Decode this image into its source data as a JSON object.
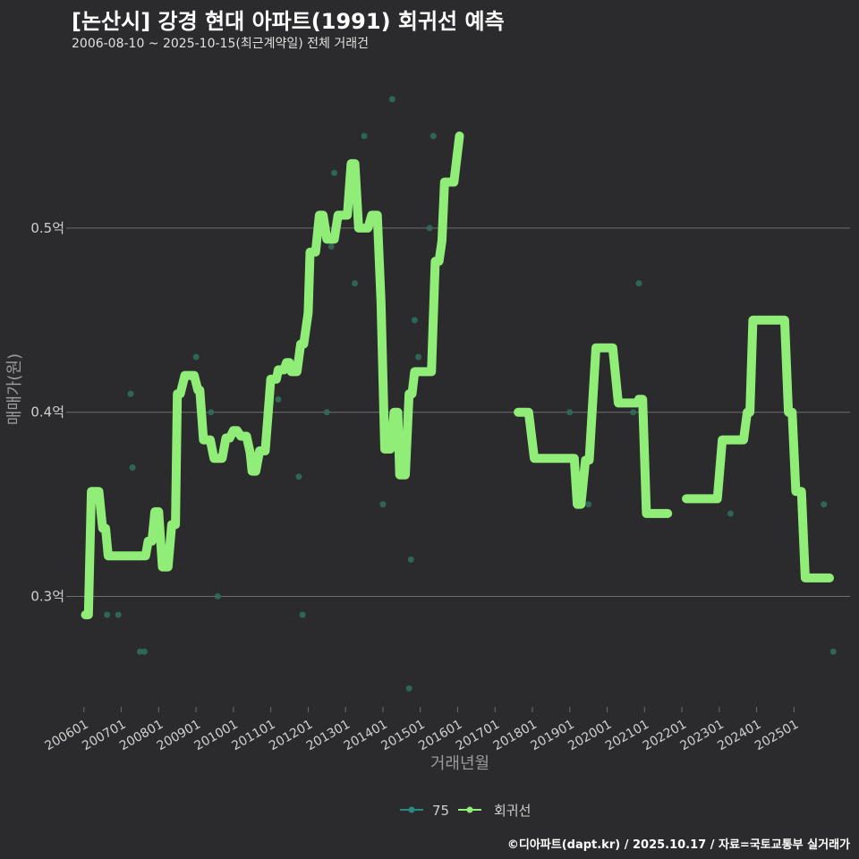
{
  "header": {
    "title": "[논산시] 강경 현대 아파트(1991) 회귀선 예측",
    "subtitle": "2006-08-10 ~ 2025-10-15(최근계약일) 전체 거래건"
  },
  "footer": "©디아파트(dapt.kr) / 2025.10.17 / 자료=국토교통부 실거래가",
  "colors": {
    "background": "#2b2b2d",
    "grid": "#6e6e70",
    "line": "#90ee78",
    "points": "#2f6b5a",
    "text": "#cfcfcf"
  },
  "chart_data": {
    "type": "line",
    "title": "[논산시] 강경 현대 아파트(1991) 회귀선 예측",
    "xlabel": "거래년월",
    "ylabel": "매매가(원)",
    "ylim": [
      0.24,
      0.585
    ],
    "xlim": [
      2005.67,
      2026.5
    ],
    "y_ticks": [
      {
        "v": 0.3,
        "label": "0.3억"
      },
      {
        "v": 0.4,
        "label": "0.4억"
      },
      {
        "v": 0.5,
        "label": "0.5억"
      }
    ],
    "x_ticks": [
      {
        "v": 2006.0,
        "label": "200601"
      },
      {
        "v": 2007.0,
        "label": "200701"
      },
      {
        "v": 2008.0,
        "label": "200801"
      },
      {
        "v": 2009.0,
        "label": "200901"
      },
      {
        "v": 2010.0,
        "label": "201001"
      },
      {
        "v": 2011.0,
        "label": "201101"
      },
      {
        "v": 2012.0,
        "label": "201201"
      },
      {
        "v": 2013.0,
        "label": "201301"
      },
      {
        "v": 2014.0,
        "label": "201401"
      },
      {
        "v": 2015.0,
        "label": "201501"
      },
      {
        "v": 2016.0,
        "label": "201601"
      },
      {
        "v": 2017.0,
        "label": "201701"
      },
      {
        "v": 2018.0,
        "label": "201801"
      },
      {
        "v": 2019.0,
        "label": "201901"
      },
      {
        "v": 2020.0,
        "label": "202001"
      },
      {
        "v": 2021.0,
        "label": "202101"
      },
      {
        "v": 2022.0,
        "label": "202201"
      },
      {
        "v": 2023.0,
        "label": "202301"
      },
      {
        "v": 2024.0,
        "label": "202401"
      },
      {
        "v": 2025.0,
        "label": "202501"
      }
    ],
    "legend": {
      "position": "bottom",
      "items": [
        {
          "name": "75",
          "kind": "points"
        },
        {
          "name": "회귀선",
          "kind": "line"
        }
      ]
    },
    "series": [
      {
        "name": "75",
        "kind": "scatter",
        "points": [
          [
            2006.62,
            0.29
          ],
          [
            2006.92,
            0.29
          ],
          [
            2007.25,
            0.41
          ],
          [
            2007.3,
            0.37
          ],
          [
            2007.5,
            0.27
          ],
          [
            2007.62,
            0.27
          ],
          [
            2009.0,
            0.43
          ],
          [
            2009.4,
            0.4
          ],
          [
            2009.58,
            0.3
          ],
          [
            2010.92,
            0.4
          ],
          [
            2011.2,
            0.407
          ],
          [
            2011.75,
            0.365
          ],
          [
            2011.85,
            0.29
          ],
          [
            2012.5,
            0.4
          ],
          [
            2012.62,
            0.49
          ],
          [
            2012.7,
            0.53
          ],
          [
            2013.25,
            0.47
          ],
          [
            2013.5,
            0.55
          ],
          [
            2014.0,
            0.35
          ],
          [
            2014.25,
            0.57
          ],
          [
            2014.7,
            0.25
          ],
          [
            2014.75,
            0.32
          ],
          [
            2014.85,
            0.45
          ],
          [
            2014.95,
            0.43
          ],
          [
            2015.25,
            0.5
          ],
          [
            2015.35,
            0.55
          ],
          [
            2019.0,
            0.4
          ],
          [
            2019.5,
            0.35
          ],
          [
            2020.7,
            0.4
          ],
          [
            2020.85,
            0.47
          ],
          [
            2023.3,
            0.345
          ],
          [
            2025.8,
            0.35
          ],
          [
            2026.05,
            0.27
          ]
        ]
      },
      {
        "name": "회귀선",
        "kind": "line",
        "segments": [
          [
            [
              2006.04,
              0.29
            ],
            [
              2006.12,
              0.29
            ],
            [
              2006.2,
              0.357
            ],
            [
              2006.4,
              0.357
            ],
            [
              2006.5,
              0.337
            ],
            [
              2006.58,
              0.337
            ],
            [
              2006.65,
              0.322
            ],
            [
              2007.5,
              0.322
            ],
            [
              2007.65,
              0.322
            ],
            [
              2007.72,
              0.33
            ],
            [
              2007.82,
              0.33
            ],
            [
              2007.9,
              0.346
            ],
            [
              2008.0,
              0.346
            ],
            [
              2008.1,
              0.316
            ],
            [
              2008.25,
              0.316
            ],
            [
              2008.35,
              0.339
            ],
            [
              2008.45,
              0.339
            ],
            [
              2008.5,
              0.41
            ],
            [
              2008.58,
              0.41
            ],
            [
              2008.7,
              0.42
            ],
            [
              2008.95,
              0.42
            ],
            [
              2009.05,
              0.412
            ],
            [
              2009.1,
              0.412
            ],
            [
              2009.2,
              0.385
            ],
            [
              2009.38,
              0.385
            ],
            [
              2009.48,
              0.375
            ],
            [
              2009.7,
              0.375
            ],
            [
              2009.8,
              0.386
            ],
            [
              2009.9,
              0.386
            ],
            [
              2010.0,
              0.39
            ],
            [
              2010.1,
              0.39
            ],
            [
              2010.2,
              0.387
            ],
            [
              2010.35,
              0.387
            ],
            [
              2010.45,
              0.378
            ],
            [
              2010.5,
              0.368
            ],
            [
              2010.6,
              0.368
            ],
            [
              2010.7,
              0.379
            ],
            [
              2010.85,
              0.379
            ],
            [
              2011.0,
              0.418
            ],
            [
              2011.15,
              0.418
            ],
            [
              2011.2,
              0.423
            ],
            [
              2011.35,
              0.423
            ],
            [
              2011.42,
              0.427
            ],
            [
              2011.5,
              0.427
            ],
            [
              2011.55,
              0.422
            ],
            [
              2011.7,
              0.422
            ],
            [
              2011.8,
              0.437
            ],
            [
              2011.88,
              0.437
            ],
            [
              2012.0,
              0.454
            ],
            [
              2012.05,
              0.487
            ],
            [
              2012.2,
              0.487
            ],
            [
              2012.3,
              0.507
            ],
            [
              2012.4,
              0.507
            ],
            [
              2012.5,
              0.494
            ],
            [
              2012.7,
              0.494
            ],
            [
              2012.8,
              0.507
            ],
            [
              2013.05,
              0.507
            ],
            [
              2013.15,
              0.535
            ],
            [
              2013.25,
              0.535
            ],
            [
              2013.35,
              0.5
            ],
            [
              2013.6,
              0.5
            ],
            [
              2013.7,
              0.507
            ],
            [
              2013.85,
              0.507
            ],
            [
              2013.95,
              0.46
            ],
            [
              2014.05,
              0.38
            ],
            [
              2014.2,
              0.38
            ],
            [
              2014.3,
              0.4
            ],
            [
              2014.4,
              0.4
            ],
            [
              2014.45,
              0.366
            ],
            [
              2014.6,
              0.366
            ],
            [
              2014.7,
              0.41
            ],
            [
              2014.78,
              0.41
            ],
            [
              2014.85,
              0.422
            ],
            [
              2015.3,
              0.422
            ],
            [
              2015.4,
              0.482
            ],
            [
              2015.5,
              0.482
            ],
            [
              2015.58,
              0.493
            ],
            [
              2015.65,
              0.525
            ],
            [
              2015.9,
              0.525
            ],
            [
              2016.05,
              0.55
            ]
          ],
          [
            [
              2017.62,
              0.4
            ],
            [
              2017.9,
              0.4
            ],
            [
              2018.05,
              0.375
            ],
            [
              2019.12,
              0.375
            ],
            [
              2019.2,
              0.35
            ],
            [
              2019.3,
              0.35
            ],
            [
              2019.42,
              0.374
            ],
            [
              2019.52,
              0.374
            ],
            [
              2019.7,
              0.435
            ],
            [
              2020.15,
              0.435
            ],
            [
              2020.3,
              0.405
            ],
            [
              2020.8,
              0.405
            ],
            [
              2020.85,
              0.407
            ],
            [
              2020.95,
              0.407
            ],
            [
              2021.05,
              0.345
            ],
            [
              2021.62,
              0.345
            ]
          ],
          [
            [
              2022.12,
              0.353
            ],
            [
              2022.95,
              0.353
            ],
            [
              2023.08,
              0.385
            ],
            [
              2023.65,
              0.385
            ],
            [
              2023.75,
              0.4
            ],
            [
              2023.82,
              0.4
            ],
            [
              2023.9,
              0.45
            ],
            [
              2024.75,
              0.45
            ],
            [
              2024.85,
              0.4
            ],
            [
              2024.95,
              0.4
            ],
            [
              2025.05,
              0.357
            ],
            [
              2025.2,
              0.357
            ],
            [
              2025.3,
              0.31
            ],
            [
              2025.95,
              0.31
            ]
          ]
        ]
      }
    ]
  }
}
